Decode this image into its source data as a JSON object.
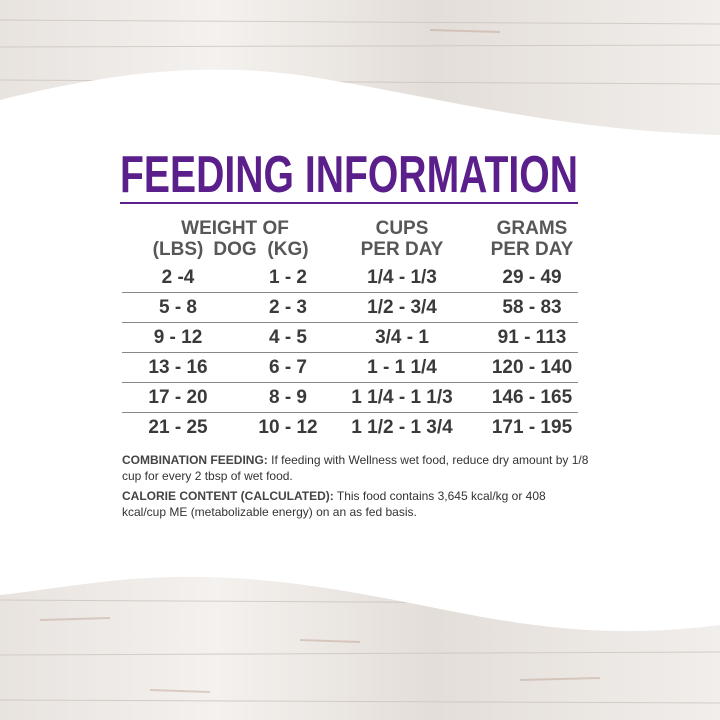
{
  "title": "FEEDING INFORMATION",
  "table": {
    "headers": {
      "weight": "WEIGHT OF DOG",
      "lbs": "(LBS)",
      "kg": "(KG)",
      "cups": [
        "CUPS",
        "PER DAY"
      ],
      "grams": [
        "GRAMS",
        "PER DAY"
      ]
    },
    "rows": [
      [
        "2 -4",
        "1 - 2",
        "1/4 - 1/3",
        "29 - 49"
      ],
      [
        "5 - 8",
        "2 - 3",
        "1/2 - 3/4",
        "58 - 83"
      ],
      [
        "9 - 12",
        "4 - 5",
        "3/4 - 1",
        "91 - 113"
      ],
      [
        "13 - 16",
        "6 - 7",
        "1 - 1 1/4",
        "120 - 140"
      ],
      [
        "17 - 20",
        "8 - 9",
        "1 1/4 - 1 1/3",
        "146 - 165"
      ],
      [
        "21 - 25",
        "10 - 12",
        "1 1/2 - 1 3/4",
        "171 - 195"
      ]
    ]
  },
  "notes": [
    {
      "label": "COMBINATION FEEDING:",
      "text": "If feeding with Wellness wet food, reduce dry amount by 1/8 cup for every 2 tbsp of wet food."
    },
    {
      "label": "CALORIE CONTENT (CALCULATED):",
      "text": "This food contains 3,645 kcal/kg or 408 kcal/cup ME (metabolizable energy) on an as fed basis."
    }
  ]
}
